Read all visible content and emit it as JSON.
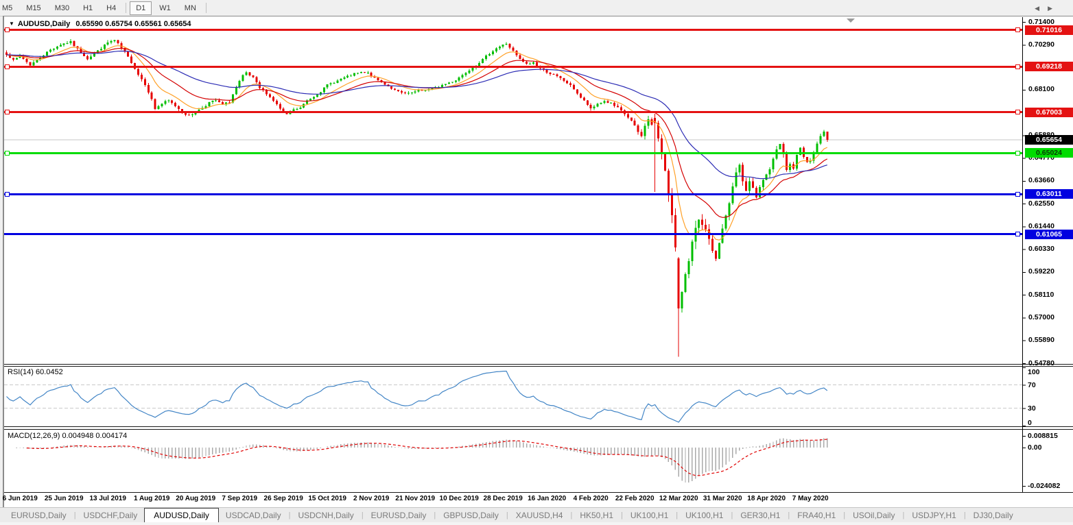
{
  "toolbar": {
    "timeframes": [
      "M5",
      "M15",
      "M30",
      "H1",
      "H4",
      "D1",
      "W1",
      "MN"
    ],
    "active": "D1"
  },
  "header": {
    "dropdown_icon": "▼",
    "symbol": "AUDUSD,Daily",
    "ohlc": "0.65590 0.65754 0.65561 0.65654"
  },
  "price_axis": {
    "ticks": [
      {
        "label": "0.71400",
        "price": 0.714
      },
      {
        "label": "0.70290",
        "price": 0.7029
      },
      {
        "label": "0.68100",
        "price": 0.681
      },
      {
        "label": "0.65880",
        "price": 0.6588
      },
      {
        "label": "0.64770",
        "price": 0.6477
      },
      {
        "label": "0.63660",
        "price": 0.6366
      },
      {
        "label": "0.62550",
        "price": 0.6255
      },
      {
        "label": "0.61440",
        "price": 0.6144
      },
      {
        "label": "0.60330",
        "price": 0.6033
      },
      {
        "label": "0.59220",
        "price": 0.5922
      },
      {
        "label": "0.58110",
        "price": 0.5811
      },
      {
        "label": "0.57000",
        "price": 0.57
      },
      {
        "label": "0.55890",
        "price": 0.5589
      },
      {
        "label": "0.54780",
        "price": 0.5478
      }
    ]
  },
  "levels": [
    {
      "label": "0.71016",
      "price": 0.71016,
      "color": "#e41212",
      "text_color": "#ffffff",
      "left_handle": true
    },
    {
      "label": "0.69218",
      "price": 0.69218,
      "color": "#e41212",
      "text_color": "#ffffff",
      "left_handle": true
    },
    {
      "label": "0.67003",
      "price": 0.67003,
      "color": "#e41212",
      "text_color": "#ffffff",
      "left_handle": true
    },
    {
      "label": "0.65024",
      "price": 0.65024,
      "color": "#00dc00",
      "text_color": "#063b06",
      "left_handle": true
    },
    {
      "label": "0.63011",
      "price": 0.63011,
      "color": "#0000e0",
      "text_color": "#ffffff",
      "left_handle": true
    },
    {
      "label": "0.61065",
      "price": 0.61065,
      "color": "#0000e0",
      "text_color": "#ffffff",
      "left_handle": false
    }
  ],
  "current_price": {
    "label": "0.65654",
    "price": 0.65654,
    "line_color": "#c6c6c6",
    "box_color": "#000000",
    "text_color": "#ffffff"
  },
  "date_axis": {
    "labels": [
      "6 Jun 2019",
      "25 Jun 2019",
      "13 Jul 2019",
      "1 Aug 2019",
      "20 Aug 2019",
      "7 Sep 2019",
      "26 Sep 2019",
      "15 Oct 2019",
      "2 Nov 2019",
      "21 Nov 2019",
      "10 Dec 2019",
      "28 Dec 2019",
      "16 Jan 2020",
      "4 Feb 2020",
      "22 Feb 2020",
      "12 Mar 2020",
      "31 Mar 2020",
      "18 Apr 2020",
      "7 May 2020"
    ]
  },
  "rsi_panel": {
    "title": "RSI(14) 60.0452",
    "line_color": "#4285c6",
    "levels": [
      {
        "label": "100",
        "value": 100,
        "dashed": false
      },
      {
        "label": "70",
        "value": 70,
        "dashed": true
      },
      {
        "label": "30",
        "value": 30,
        "dashed": true
      },
      {
        "label": "0",
        "value": 0,
        "dashed": false
      }
    ]
  },
  "macd_panel": {
    "title": "MACD(12,26,9) 0.004948 0.004174",
    "hist_color": "#a9a9a9",
    "signal_color": "#e00000",
    "axis": [
      {
        "label": "0.008815",
        "value": 0.008815
      },
      {
        "label": "0.00",
        "value": 0.0
      },
      {
        "label": "-0.024082",
        "value": -0.024082
      }
    ]
  },
  "tabs": {
    "items": [
      {
        "label": "EURUSD,Daily",
        "active": false
      },
      {
        "label": "USDCHF,Daily",
        "active": false
      },
      {
        "label": "AUDUSD,Daily",
        "active": true
      },
      {
        "label": "USDCAD,Daily",
        "active": false
      },
      {
        "label": "USDCNH,Daily",
        "active": false
      },
      {
        "label": "EURUSD,Daily",
        "active": false
      },
      {
        "label": "GBPUSD,Daily",
        "active": false
      },
      {
        "label": "XAUUSD,H4",
        "active": false
      },
      {
        "label": "HK50,H1",
        "active": false
      },
      {
        "label": "UK100,H1",
        "active": false
      },
      {
        "label": "UK100,H1",
        "active": false
      },
      {
        "label": "GER30,H1",
        "active": false
      },
      {
        "label": "FRA40,H1",
        "active": false
      },
      {
        "label": "USOil,Daily",
        "active": false
      },
      {
        "label": "USDJPY,H1",
        "active": false
      },
      {
        "label": "DJ30,Daily",
        "active": false
      }
    ],
    "scroll_left_icon": "◀",
    "scroll_right_icon": "▶"
  },
  "chart_data": {
    "type": "candlestick",
    "symbol": "AUDUSD",
    "timeframe": "Daily",
    "title_ohlc": {
      "open": 0.6559,
      "high": 0.65754,
      "low": 0.65561,
      "close": 0.65654
    },
    "n_bars": 244,
    "first_date_tick_bar": 4,
    "date_tick_step_bars": 13,
    "up_color": "#00be00",
    "down_color": "#e60000",
    "price_range_visible": [
      0.5478,
      0.714
    ],
    "horizontal_levels": [
      0.71016,
      0.69218,
      0.67003,
      0.65024,
      0.63011,
      0.61065
    ],
    "close_waypoints": [
      [
        0,
        0.6985
      ],
      [
        2,
        0.6952
      ],
      [
        4,
        0.6975
      ],
      [
        7,
        0.693
      ],
      [
        10,
        0.6968
      ],
      [
        13,
        0.7005
      ],
      [
        16,
        0.703
      ],
      [
        19,
        0.7042
      ],
      [
        21,
        0.7008
      ],
      [
        24,
        0.6962
      ],
      [
        27,
        0.6998
      ],
      [
        30,
        0.704
      ],
      [
        32,
        0.705
      ],
      [
        34,
        0.7012
      ],
      [
        37,
        0.6945
      ],
      [
        39,
        0.6885
      ],
      [
        41,
        0.6838
      ],
      [
        43,
        0.6762
      ],
      [
        44,
        0.6718
      ],
      [
        46,
        0.6742
      ],
      [
        48,
        0.6756
      ],
      [
        50,
        0.6732
      ],
      [
        52,
        0.6702
      ],
      [
        54,
        0.6682
      ],
      [
        56,
        0.6702
      ],
      [
        58,
        0.6722
      ],
      [
        60,
        0.6747
      ],
      [
        62,
        0.6757
      ],
      [
        64,
        0.6737
      ],
      [
        66,
        0.6752
      ],
      [
        68,
        0.6822
      ],
      [
        70,
        0.6877
      ],
      [
        71,
        0.6892
      ],
      [
        73,
        0.6867
      ],
      [
        75,
        0.6817
      ],
      [
        77,
        0.6792
      ],
      [
        79,
        0.6757
      ],
      [
        81,
        0.6717
      ],
      [
        83,
        0.6687
      ],
      [
        85,
        0.6712
      ],
      [
        87,
        0.6722
      ],
      [
        89,
        0.6757
      ],
      [
        91,
        0.6777
      ],
      [
        93,
        0.6802
      ],
      [
        95,
        0.6834
      ],
      [
        97,
        0.6847
      ],
      [
        99,
        0.6862
      ],
      [
        101,
        0.6874
      ],
      [
        103,
        0.6887
      ],
      [
        105,
        0.6894
      ],
      [
        107,
        0.6891
      ],
      [
        109,
        0.6864
      ],
      [
        111,
        0.6847
      ],
      [
        113,
        0.6827
      ],
      [
        115,
        0.6807
      ],
      [
        117,
        0.6794
      ],
      [
        119,
        0.679
      ],
      [
        121,
        0.68
      ],
      [
        123,
        0.6807
      ],
      [
        125,
        0.6812
      ],
      [
        127,
        0.682
      ],
      [
        129,
        0.6832
      ],
      [
        131,
        0.6844
      ],
      [
        133,
        0.6857
      ],
      [
        135,
        0.6882
      ],
      [
        137,
        0.6907
      ],
      [
        139,
        0.693
      ],
      [
        141,
        0.6957
      ],
      [
        143,
        0.6987
      ],
      [
        145,
        0.7012
      ],
      [
        147,
        0.7027
      ],
      [
        148,
        0.7034
      ],
      [
        150,
        0.6997
      ],
      [
        152,
        0.6957
      ],
      [
        154,
        0.6934
      ],
      [
        156,
        0.6942
      ],
      [
        158,
        0.6914
      ],
      [
        160,
        0.6897
      ],
      [
        162,
        0.6882
      ],
      [
        164,
        0.6864
      ],
      [
        166,
        0.6842
      ],
      [
        168,
        0.6814
      ],
      [
        170,
        0.6772
      ],
      [
        172,
        0.6737
      ],
      [
        173,
        0.6714
      ],
      [
        175,
        0.6742
      ],
      [
        177,
        0.6754
      ],
      [
        179,
        0.6742
      ],
      [
        181,
        0.672
      ],
      [
        183,
        0.6692
      ],
      [
        185,
        0.6657
      ],
      [
        186,
        0.663
      ],
      [
        187,
        0.6604
      ],
      [
        188,
        0.6582
      ],
      [
        189,
        0.6642
      ],
      [
        190,
        0.6662
      ],
      [
        191,
        0.6642
      ],
      [
        192,
        0.6652
      ],
      [
        193,
        0.6562
      ],
      [
        194,
        0.6502
      ],
      [
        195,
        0.6422
      ],
      [
        196,
        0.6312
      ],
      [
        197,
        0.6192
      ],
      [
        198,
        0.6032
      ],
      [
        199,
        0.5745
      ],
      [
        200,
        0.5832
      ],
      [
        201,
        0.5922
      ],
      [
        202,
        0.5992
      ],
      [
        203,
        0.6062
      ],
      [
        204,
        0.6122
      ],
      [
        205,
        0.6167
      ],
      [
        206,
        0.6142
      ],
      [
        208,
        0.6092
      ],
      [
        209,
        0.6012
      ],
      [
        210,
        0.5992
      ],
      [
        211,
        0.6062
      ],
      [
        212,
        0.6137
      ],
      [
        213,
        0.6192
      ],
      [
        214,
        0.6252
      ],
      [
        215,
        0.6337
      ],
      [
        216,
        0.6402
      ],
      [
        217,
        0.6442
      ],
      [
        218,
        0.6362
      ],
      [
        219,
        0.6322
      ],
      [
        220,
        0.6357
      ],
      [
        221,
        0.6332
      ],
      [
        222,
        0.6292
      ],
      [
        223,
        0.6332
      ],
      [
        224,
        0.6372
      ],
      [
        226,
        0.6422
      ],
      [
        227,
        0.6467
      ],
      [
        228,
        0.6512
      ],
      [
        229,
        0.6552
      ],
      [
        230,
        0.6502
      ],
      [
        231,
        0.6422
      ],
      [
        232,
        0.6447
      ],
      [
        233,
        0.6427
      ],
      [
        234,
        0.6487
      ],
      [
        235,
        0.6522
      ],
      [
        236,
        0.6482
      ],
      [
        237,
        0.6452
      ],
      [
        238,
        0.6467
      ],
      [
        239,
        0.6502
      ],
      [
        240,
        0.6542
      ],
      [
        241,
        0.6582
      ],
      [
        242,
        0.6602
      ],
      [
        243,
        0.65654
      ]
    ],
    "volatility_waypoints": [
      [
        0,
        0.0014
      ],
      [
        40,
        0.0016
      ],
      [
        100,
        0.0011
      ],
      [
        140,
        0.0012
      ],
      [
        185,
        0.0016
      ],
      [
        191,
        0.0035
      ],
      [
        199,
        0.006
      ],
      [
        206,
        0.0045
      ],
      [
        212,
        0.0035
      ],
      [
        220,
        0.0028
      ],
      [
        235,
        0.002
      ],
      [
        243,
        0.0018
      ]
    ],
    "bar_overrides": [
      {
        "bar": 192,
        "open": 0.6672,
        "close": 0.6648,
        "high": 0.6692,
        "low": 0.6313
      },
      {
        "bar": 199,
        "open": 0.5988,
        "close": 0.5745,
        "high": 0.5995,
        "low": 0.551
      },
      {
        "bar": 242,
        "high": 0.6615
      },
      {
        "bar": 243,
        "high": 0.65754,
        "low": 0.65561
      }
    ],
    "moving_averages": [
      {
        "period": 10,
        "color": "#ffa128"
      },
      {
        "period": 22,
        "color": "#d40000"
      },
      {
        "period": 50,
        "color": "#2b2bb4"
      }
    ],
    "indicators": [
      {
        "name": "RSI",
        "period": 14,
        "current": 60.0452
      },
      {
        "name": "MACD",
        "fast": 12,
        "slow": 26,
        "signal": 9,
        "current_macd": 0.004948,
        "current_signal": 0.004174
      }
    ]
  }
}
